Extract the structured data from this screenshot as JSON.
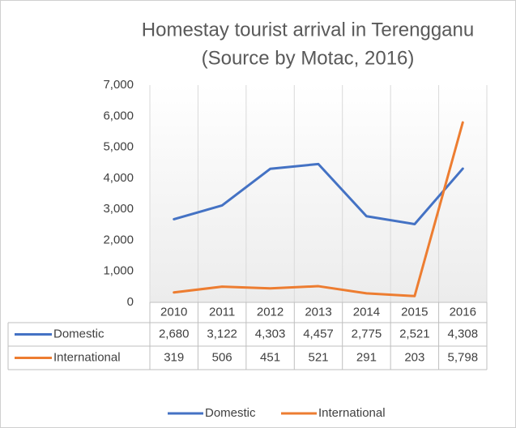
{
  "chart_data": {
    "type": "line",
    "title": "Homestay tourist arrival in Terengganu",
    "subtitle": "(Source by Motac, 2016)",
    "categories": [
      "2010",
      "2011",
      "2012",
      "2013",
      "2014",
      "2015",
      "2016"
    ],
    "series": [
      {
        "name": "Domestic",
        "color": "#4472c4",
        "values": [
          2680,
          3122,
          4303,
          4457,
          2775,
          2521,
          4308
        ],
        "value_labels": [
          "2,680",
          "3,122",
          "4,303",
          "4,457",
          "2,775",
          "2,521",
          "4,308"
        ]
      },
      {
        "name": "International",
        "color": "#ed7d31",
        "values": [
          319,
          506,
          451,
          521,
          291,
          203,
          5798
        ],
        "value_labels": [
          "319",
          "506",
          "451",
          "521",
          "291",
          "203",
          "5,798"
        ]
      }
    ],
    "ylim": [
      0,
      7000
    ],
    "yticks": [
      0,
      {
        "value": 1000,
        "label": "1,000"
      },
      {
        "value": 2000,
        "label": "2,000"
      },
      {
        "value": 3000,
        "label": "3,000"
      },
      {
        "value": 4000,
        "label": "4,000"
      },
      {
        "value": 5000,
        "label": "5,000"
      },
      {
        "value": 6000,
        "label": "6,000"
      },
      {
        "value": 7000,
        "label": "7,000"
      }
    ],
    "grid": true
  }
}
